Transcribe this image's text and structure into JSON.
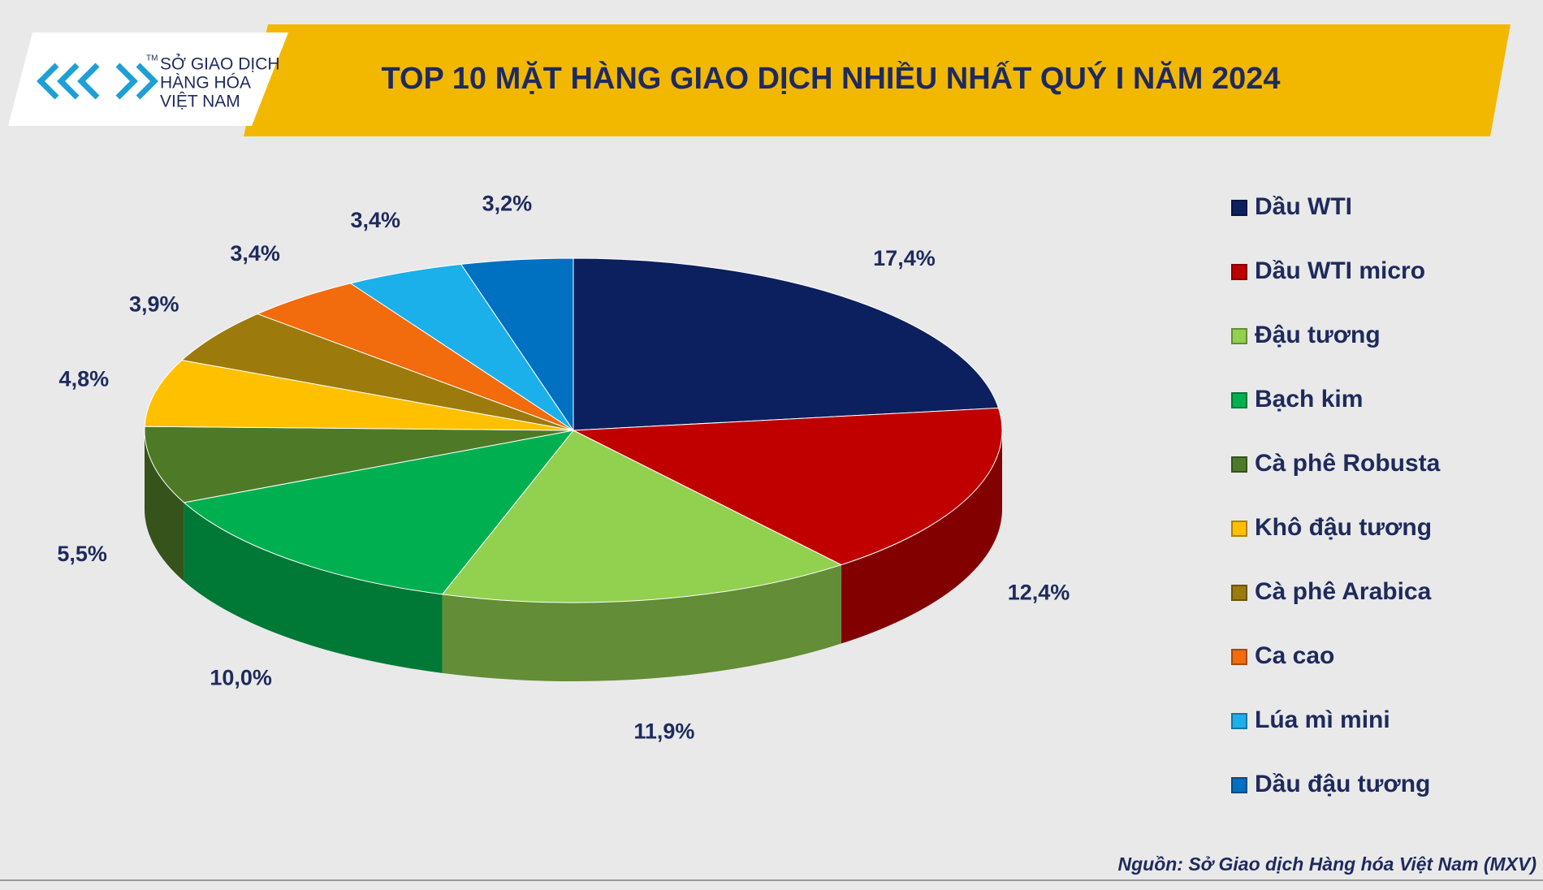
{
  "logo": {
    "lines": [
      "SỞ GIAO DỊCH",
      "HÀNG HÓA",
      "VIỆT NAM"
    ],
    "mark": "TM"
  },
  "chart_data": {
    "type": "pie",
    "title": "TOP 10 MẶT HÀNG GIAO DỊCH NHIỀU NHẤT QUÝ I NĂM 2024",
    "categories": [
      "Dầu WTI",
      "Dầu WTI micro",
      "Đậu tương",
      "Bạch kim",
      "Cà phê Robusta",
      "Khô đậu tương",
      "Cà phê Arabica",
      "Ca cao",
      "Lúa mì mini",
      "Dầu đậu tương"
    ],
    "values": [
      17.4,
      12.4,
      11.9,
      10.0,
      5.5,
      4.8,
      3.9,
      3.4,
      3.4,
      3.2
    ],
    "value_labels": [
      "17,4%",
      "12,4%",
      "11,9%",
      "10,0%",
      "5,5%",
      "4,8%",
      "3,9%",
      "3,4%",
      "3,4%",
      "3,2%"
    ],
    "colors": [
      "#0c1f5e",
      "#c00000",
      "#92d050",
      "#00b050",
      "#4e7a27",
      "#ffc000",
      "#9c7b0c",
      "#f26b0c",
      "#1bb0ea",
      "#0070c0"
    ],
    "legend": "right",
    "source": "Nguồn: Sở Giao dịch Hàng hóa Việt Nam (MXV)"
  }
}
